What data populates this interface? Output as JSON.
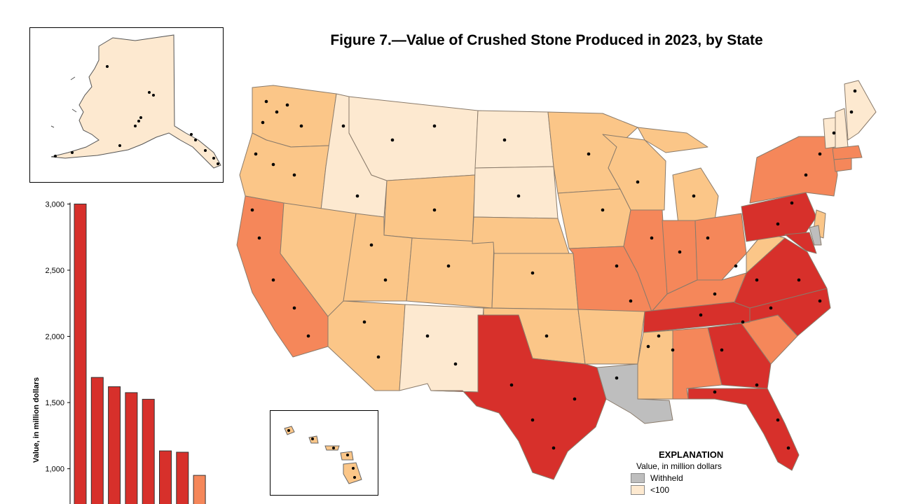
{
  "title": "Figure 7.—Value of Crushed Stone Produced in 2023, by State",
  "colors": {
    "withheld": "#bebebe",
    "lt100": "#fde9d0",
    "c2": "#fbc688",
    "c3": "#f5875a",
    "c4": "#d7302b",
    "dot": "#000000",
    "border": "#8a7b6b"
  },
  "explanation": {
    "title": "EXPLANATION",
    "subtitle": "Value, in million dollars",
    "items": [
      {
        "label": "Withheld",
        "color_key": "withheld"
      },
      {
        "label": "<100",
        "color_key": "lt100"
      }
    ]
  },
  "chart_data": {
    "type": "bar",
    "ylabel": "Value, in million dollars",
    "ylim": [
      850,
      3050
    ],
    "yticks": [
      1000,
      1500,
      2000,
      2500,
      3000
    ],
    "ytick_labels": [
      "1,000",
      "1,500",
      "2,000",
      "2,500",
      "3,000"
    ],
    "values": [
      3000,
      1690,
      1620,
      1575,
      1525,
      1135,
      1125,
      950
    ],
    "colors": [
      "#d7302b",
      "#d7302b",
      "#d7302b",
      "#d7302b",
      "#d7302b",
      "#d7302b",
      "#d7302b",
      "#f5875a"
    ]
  }
}
